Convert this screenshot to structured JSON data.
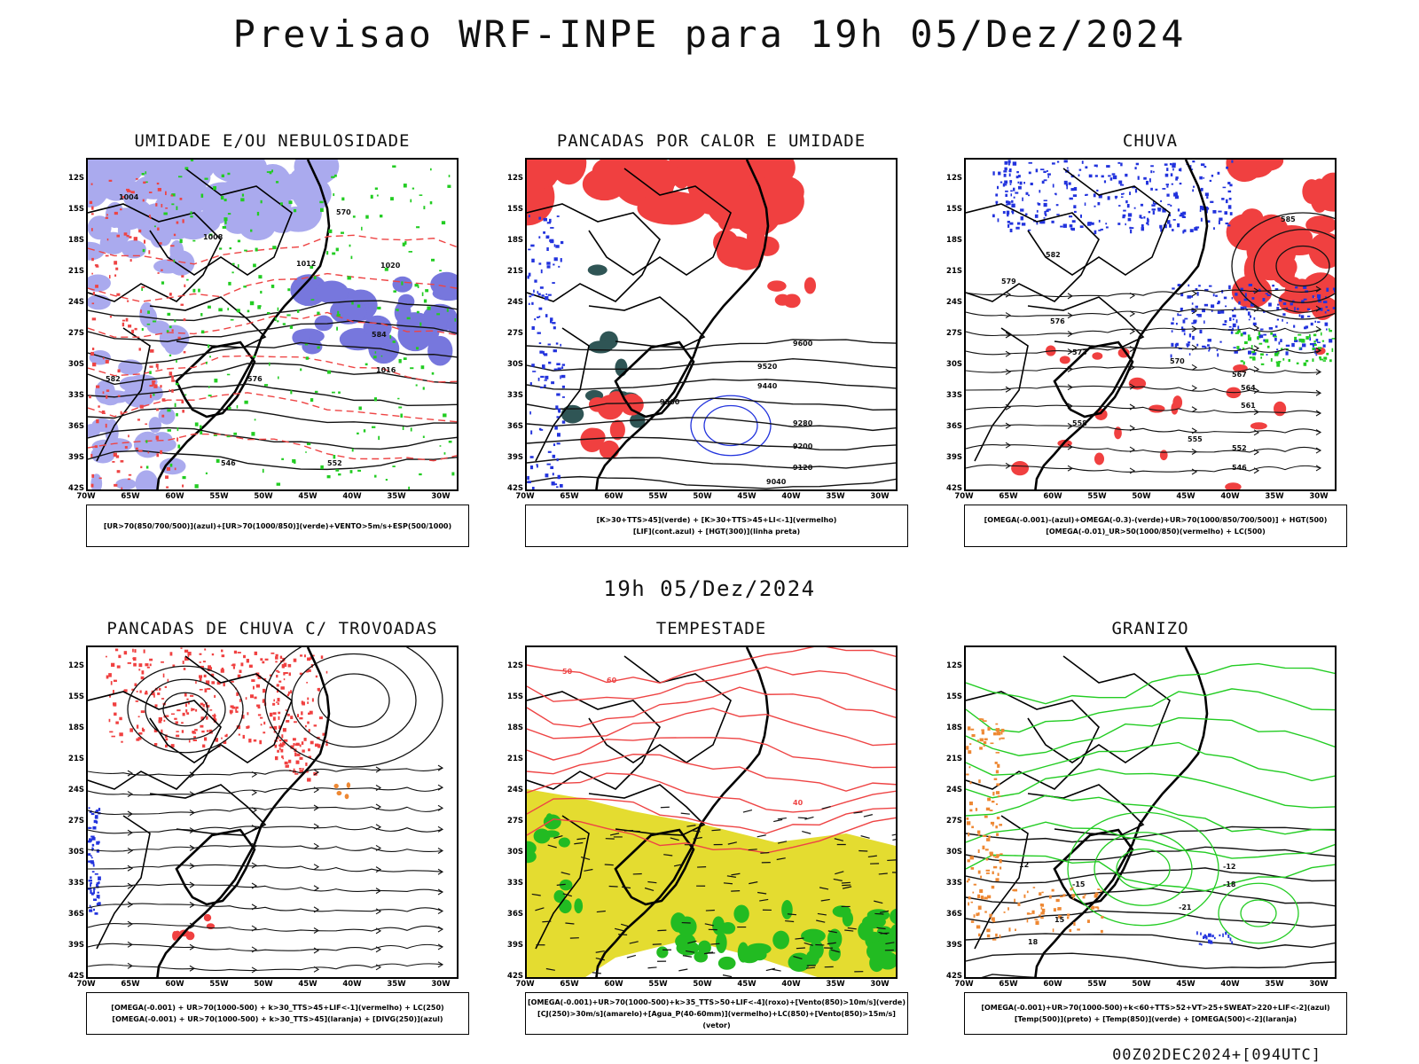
{
  "header": {
    "title": "Previsao WRF-INPE  para 19h 05/Dez/2024",
    "mid_label": "19h 05/Dez/2024",
    "run_stamp": "00Z02DEC2024+[094UTC]"
  },
  "axes": {
    "lat_labels": [
      "12S",
      "15S",
      "18S",
      "21S",
      "24S",
      "27S",
      "30S",
      "33S",
      "36S",
      "39S",
      "42S"
    ],
    "lon_labels": [
      "70W",
      "65W",
      "60W",
      "55W",
      "50W",
      "45W",
      "40W",
      "35W",
      "30W"
    ]
  },
  "panels": [
    {
      "title": "UMIDADE E/OU NEBULOSIDADE",
      "legend_lines": [
        "[UR>70(850/700/500)](azul)+[UR>70(1000/850)](verde)+VENTO>5m/s+ESP(500/1000)"
      ],
      "contour_labels": [
        "1004",
        "1008",
        "1012",
        "1016",
        "1020",
        "570",
        "576",
        "582",
        "584",
        "552",
        "546"
      ]
    },
    {
      "title": "PANCADAS POR CALOR E UMIDADE",
      "legend_lines": [
        "[K>30+TTS>45](verde)  +  [K>30+TTS>45+LI<-1](vermelho)",
        "[LIF](cont.azul)  +  [HGT(300)](linha preta)"
      ],
      "contour_labels": [
        "9600",
        "9520",
        "9440",
        "9360",
        "9280",
        "9200",
        "9120",
        "9040"
      ]
    },
    {
      "title": "CHUVA",
      "legend_lines": [
        "[OMEGA(-0.001)-(azul)+OMEGA(-0.3)-(verde)+UR>70(1000/850/700/500)]  +  HGT(500)",
        "[OMEGA(-0.01)_UR>50(1000/850)(vermelho)  +  LC(500)"
      ],
      "contour_labels": [
        "585",
        "582",
        "579",
        "576",
        "573",
        "570",
        "567",
        "564",
        "561",
        "558",
        "555",
        "552",
        "546"
      ]
    },
    {
      "title": "PANCADAS DE CHUVA C/ TROVOADAS",
      "legend_lines": [
        "[OMEGA(-0.001)  +  UR>70(1000-500)  +  k>30_TTS>45+LIF<-1](vermelho)  +  LC(250)",
        "[OMEGA(-0.001)  +  UR>70(1000-500)  +  k>30_TTS>45](laranja)  +  [DIVG(250)](azul)"
      ],
      "contour_labels": []
    },
    {
      "title": "TEMPESTADE",
      "legend_lines": [
        "[OMEGA(-0.001)+UR>70(1000-500)+k>35_TTS>50+LIF<-4](roxo)+[Vento(850)>10m/s](verde)",
        "[CJ(250)>30m/s](amarelo)+[Agua_P(40-60mm)](vermelho)+LC(850)+[Vento(850)>15m/s](vetor)"
      ],
      "contour_labels": [
        "40",
        "50",
        "60"
      ]
    },
    {
      "title": "GRANIZO",
      "legend_lines": [
        "[OMEGA(-0.001)+UR>70(1000-500)+k<60+TTS>52+VT>25+SWEAT>220+LIF<-2](azul)",
        "[Temp(500)](preto)  +  [Temp(850)](verde)  +  [OMEGA(500)<-2](laranja)"
      ],
      "contour_labels": [
        "-12",
        "-15",
        "-18",
        "-21",
        "12",
        "15",
        "18"
      ]
    }
  ],
  "colors": {
    "blue_fill": "#aaaaee",
    "blue_line": "#2233dd",
    "green_line": "#22cc22",
    "red_line": "#ee4444",
    "red_fill": "#f04040",
    "yellow_fill": "#e4dc30",
    "green_fill": "#22bb22",
    "teal_fill": "#2f5555",
    "orange": "#ee8833"
  }
}
